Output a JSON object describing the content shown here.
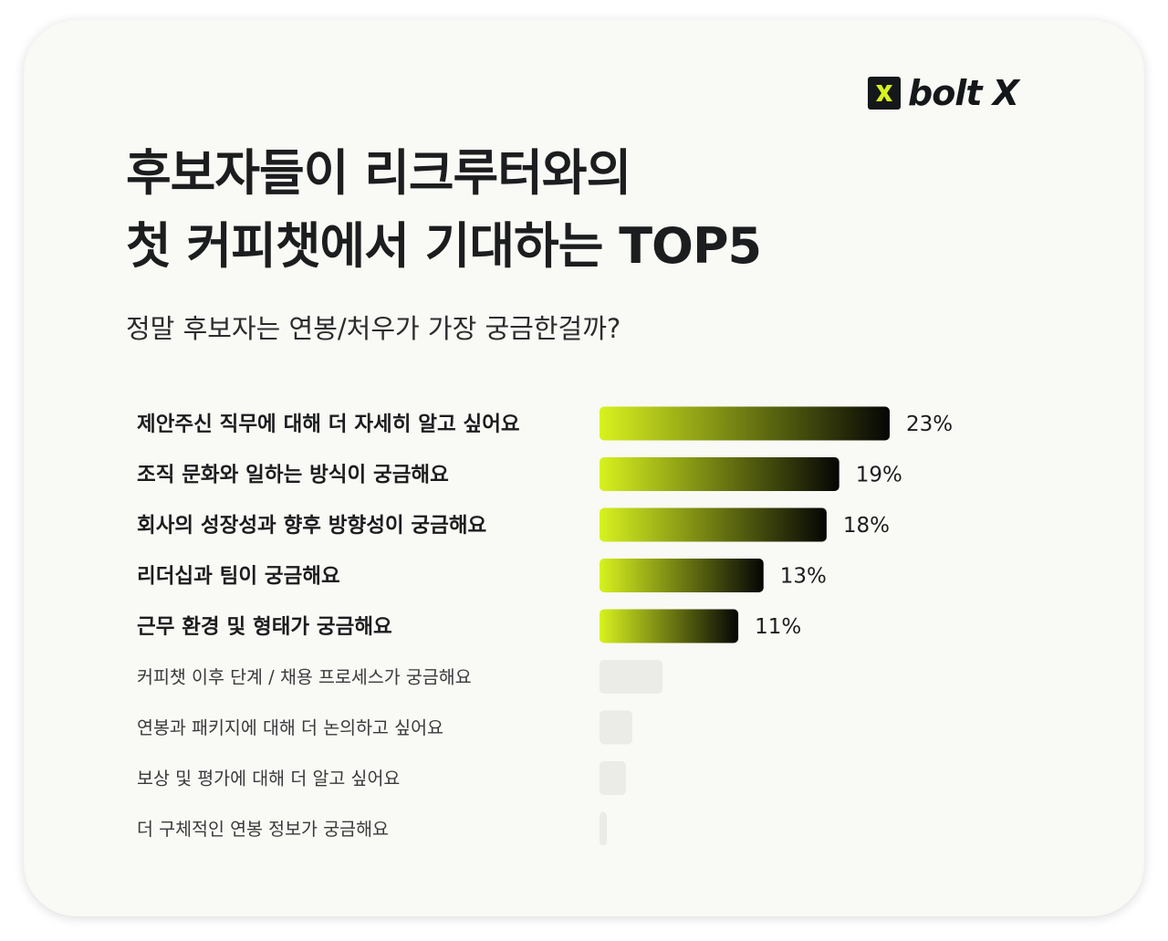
{
  "brand": {
    "logo_mark": "X",
    "logo_text": "bolt X",
    "logo_accent": "#d7f21f",
    "logo_dark": "#15181a"
  },
  "header": {
    "title_line1": "후보자들이 리크루터와의",
    "title_line2": "첫 커피챗에서 기대하는 TOP5",
    "subtitle": "정말 후보자는 연봉/처우가 가장 궁금한걸까?"
  },
  "colors": {
    "bar_gradient_start": "#d7f21f",
    "bar_gradient_end": "#050505",
    "bar_muted": "#ebebe7",
    "text_primary": "#1c1d1f",
    "text_secondary": "#3a3b3d",
    "background": "#f9f9f5"
  },
  "chart_data": {
    "type": "bar",
    "orientation": "horizontal",
    "categories": [
      "제안주신 직무에 대해 더 자세히 알고 싶어요",
      "조직 문화와 일하는 방식이 궁금해요",
      "회사의 성장성과 향후 방향성이 궁금해요",
      "리더십과 팀이 궁금해요",
      "근무 환경 및 형태가 궁금해요",
      "커피챗 이후 단계 / 채용 프로세스가 궁금해요",
      "연봉과 패키지에 대해 더 논의하고 싶어요",
      "보상 및 평가에 대해 더 알고 싶어요",
      "더 구체적인 연봉 정보가 궁금해요"
    ],
    "values": [
      23,
      19,
      18,
      13,
      11,
      5,
      2.6,
      2.1,
      0.2
    ],
    "value_labels": [
      "23%",
      "19%",
      "18%",
      "13%",
      "11%",
      "",
      "",
      "",
      ""
    ],
    "highlighted_count": 5,
    "xlim": [
      0,
      23
    ],
    "grid": false,
    "legend": "none"
  }
}
